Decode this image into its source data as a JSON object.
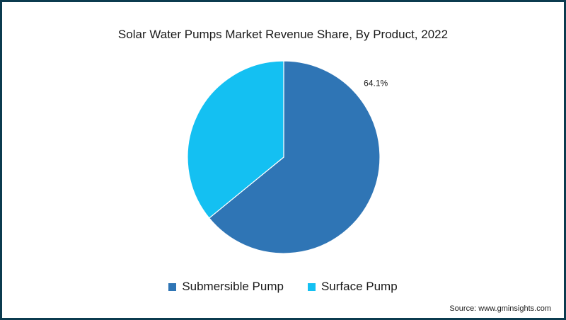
{
  "chart_data": {
    "type": "pie",
    "title": "Solar Water Pumps Market Revenue Share, By Product, 2022",
    "slices": [
      {
        "name": "Submersible Pump",
        "value": 64.1,
        "label": "64.1%",
        "color": "#2f75b5"
      },
      {
        "name": "Surface Pump",
        "value": 35.9,
        "label": "",
        "color": "#14c0f2"
      }
    ],
    "legend_position": "bottom-center",
    "source": "Source: www.gminsights.com"
  },
  "colors": {
    "border": "#0b3b4f",
    "slice_edge": "#ffffff"
  }
}
